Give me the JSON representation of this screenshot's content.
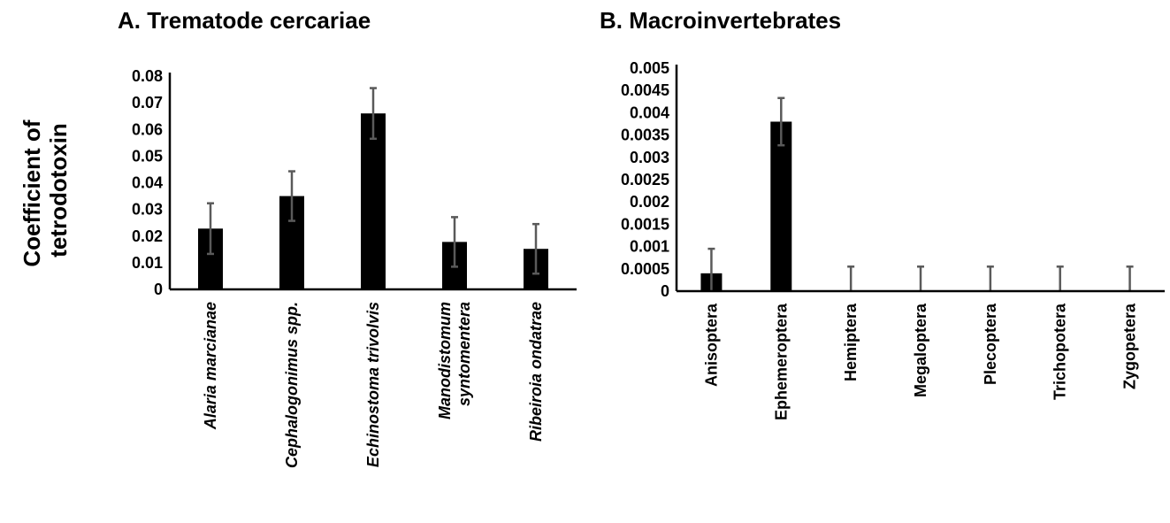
{
  "ylabel": [
    "Coefficient of",
    "tetrodotoxin"
  ],
  "chart_data": [
    {
      "type": "bar",
      "title": "A. Trematode cercariae",
      "categories": [
        [
          "Alaria marcianae"
        ],
        [
          "Cephalogonimus spp."
        ],
        [
          "Echinostoma trivolvis"
        ],
        [
          "Manodistomum",
          "syntomentera"
        ],
        [
          "Ribeiroia ondatrae"
        ]
      ],
      "categories_italic": true,
      "values": [
        0.0228,
        0.035,
        0.066,
        0.0178,
        0.0152
      ],
      "errors": [
        0.0095,
        0.0093,
        0.0095,
        0.0093,
        0.0093
      ],
      "ylim": [
        0,
        0.08
      ],
      "ticks": [
        "0",
        "0.01",
        "0.02",
        "0.03",
        "0.04",
        "0.05",
        "0.06",
        "0.07",
        "0.08"
      ],
      "grid": false
    },
    {
      "type": "bar",
      "title": "B. Macroinvertebrates",
      "categories": [
        [
          "Anisoptera"
        ],
        [
          "Ephemeroptera"
        ],
        [
          "Hemiptera"
        ],
        [
          "Megaloptera"
        ],
        [
          "Plecoptera"
        ],
        [
          "Trichopotera"
        ],
        [
          "Zygopetera"
        ]
      ],
      "categories_italic": false,
      "values": [
        0.0004,
        0.0038,
        0,
        0,
        0,
        0,
        0
      ],
      "errors": [
        0.00055,
        0.00053,
        0.00055,
        0.00055,
        0.00055,
        0.00055,
        0.00055
      ],
      "ylim": [
        0,
        0.005
      ],
      "ticks": [
        "0",
        "0.0005",
        "0.001",
        "0.0015",
        "0.002",
        "0.0025",
        "0.003",
        "0.0035",
        "0.004",
        "0.0045",
        "0.005"
      ],
      "grid": false
    }
  ]
}
